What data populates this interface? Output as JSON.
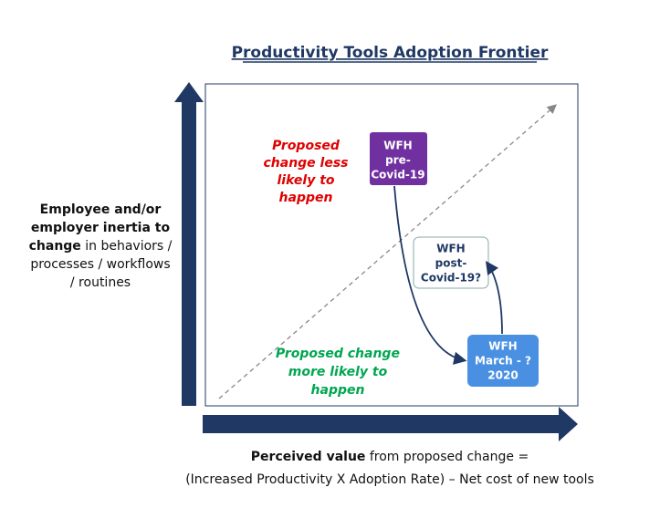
{
  "header": {
    "title": "Productivity Tools Adoption Frontier"
  },
  "y_axis_label": {
    "lines": [
      [
        {
          "text": "Employee and/or",
          "bold": true
        }
      ],
      [
        {
          "text": "employer inertia to",
          "bold": true
        }
      ],
      [
        {
          "text": "change",
          "bold": true
        },
        {
          "text": " in behaviors /",
          "bold": false
        }
      ],
      [
        {
          "text": "processes / workflows",
          "bold": false
        }
      ],
      [
        {
          "text": "/ routines",
          "bold": false
        }
      ]
    ]
  },
  "x_axis_label": {
    "lines": [
      [
        {
          "text": "Perceived value",
          "bold": true
        },
        {
          "text": " from proposed change =",
          "bold": false
        }
      ],
      [
        {
          "text": "(Increased Productivity X Adoption Rate) – Net cost of new tools",
          "bold": false
        }
      ]
    ]
  },
  "notes": [
    {
      "lines": [
        "Proposed",
        "change less",
        "likely to",
        "happen"
      ],
      "color": "#e00000"
    },
    {
      "lines": [
        "Proposed change",
        "more likely to",
        "happen"
      ],
      "color": "#00a650"
    }
  ],
  "nodes": [
    {
      "lines": [
        "WFH",
        "pre-",
        "Covid-19"
      ]
    },
    {
      "lines": [
        "WFH",
        "post-",
        "Covid-19?"
      ]
    },
    {
      "lines": [
        "WFH",
        "March - ?",
        "2020"
      ]
    }
  ]
}
